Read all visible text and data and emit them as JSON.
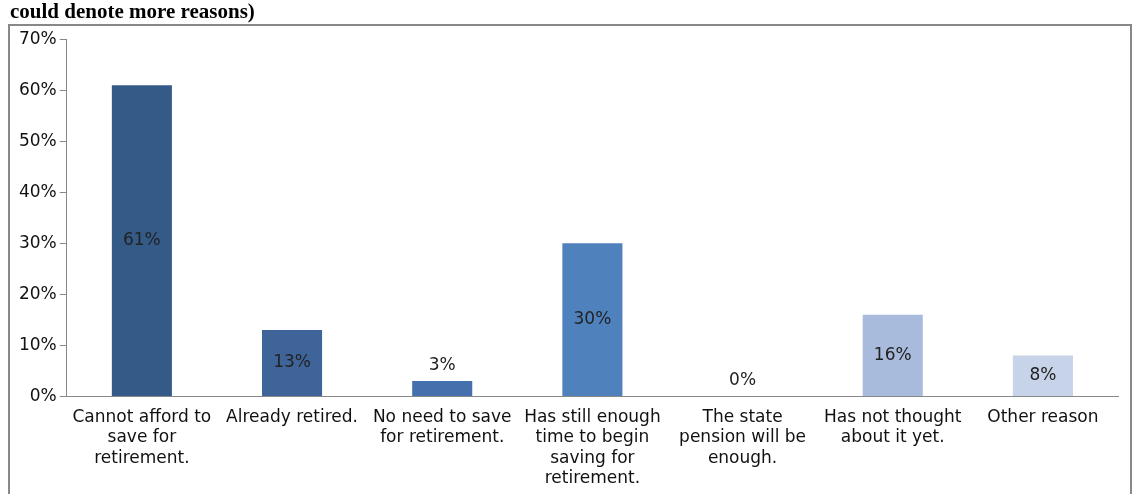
{
  "chart_data": {
    "type": "bar",
    "title": "could denote more reasons)",
    "categories": [
      "Cannot afford to save for retirement.",
      "Already retired.",
      "No need to save for retirement.",
      "Has still enough time to begin saving for retirement.",
      "The state pension will be enough.",
      "Has not thought about it yet.",
      "Other reason"
    ],
    "values": [
      61,
      13,
      3,
      30,
      0,
      16,
      8
    ],
    "colors": [
      "#345a88",
      "#3e6499",
      "#4570ad",
      "#4f81bd",
      "#7397cb",
      "#a9bbdc",
      "#c6d3e8"
    ],
    "value_labels": [
      "61%",
      "13%",
      "3%",
      "30%",
      "0%",
      "16%",
      "8%"
    ],
    "ylim": [
      0,
      70
    ],
    "yticks": [
      {
        "value": 0,
        "label": "0%"
      },
      {
        "value": 10,
        "label": "10%"
      },
      {
        "value": 20,
        "label": "20%"
      },
      {
        "value": 30,
        "label": "30%"
      },
      {
        "value": 40,
        "label": "40%"
      },
      {
        "value": 50,
        "label": "50%"
      },
      {
        "value": 60,
        "label": "60%"
      },
      {
        "value": 70,
        "label": "70%"
      }
    ],
    "grid": false
  }
}
